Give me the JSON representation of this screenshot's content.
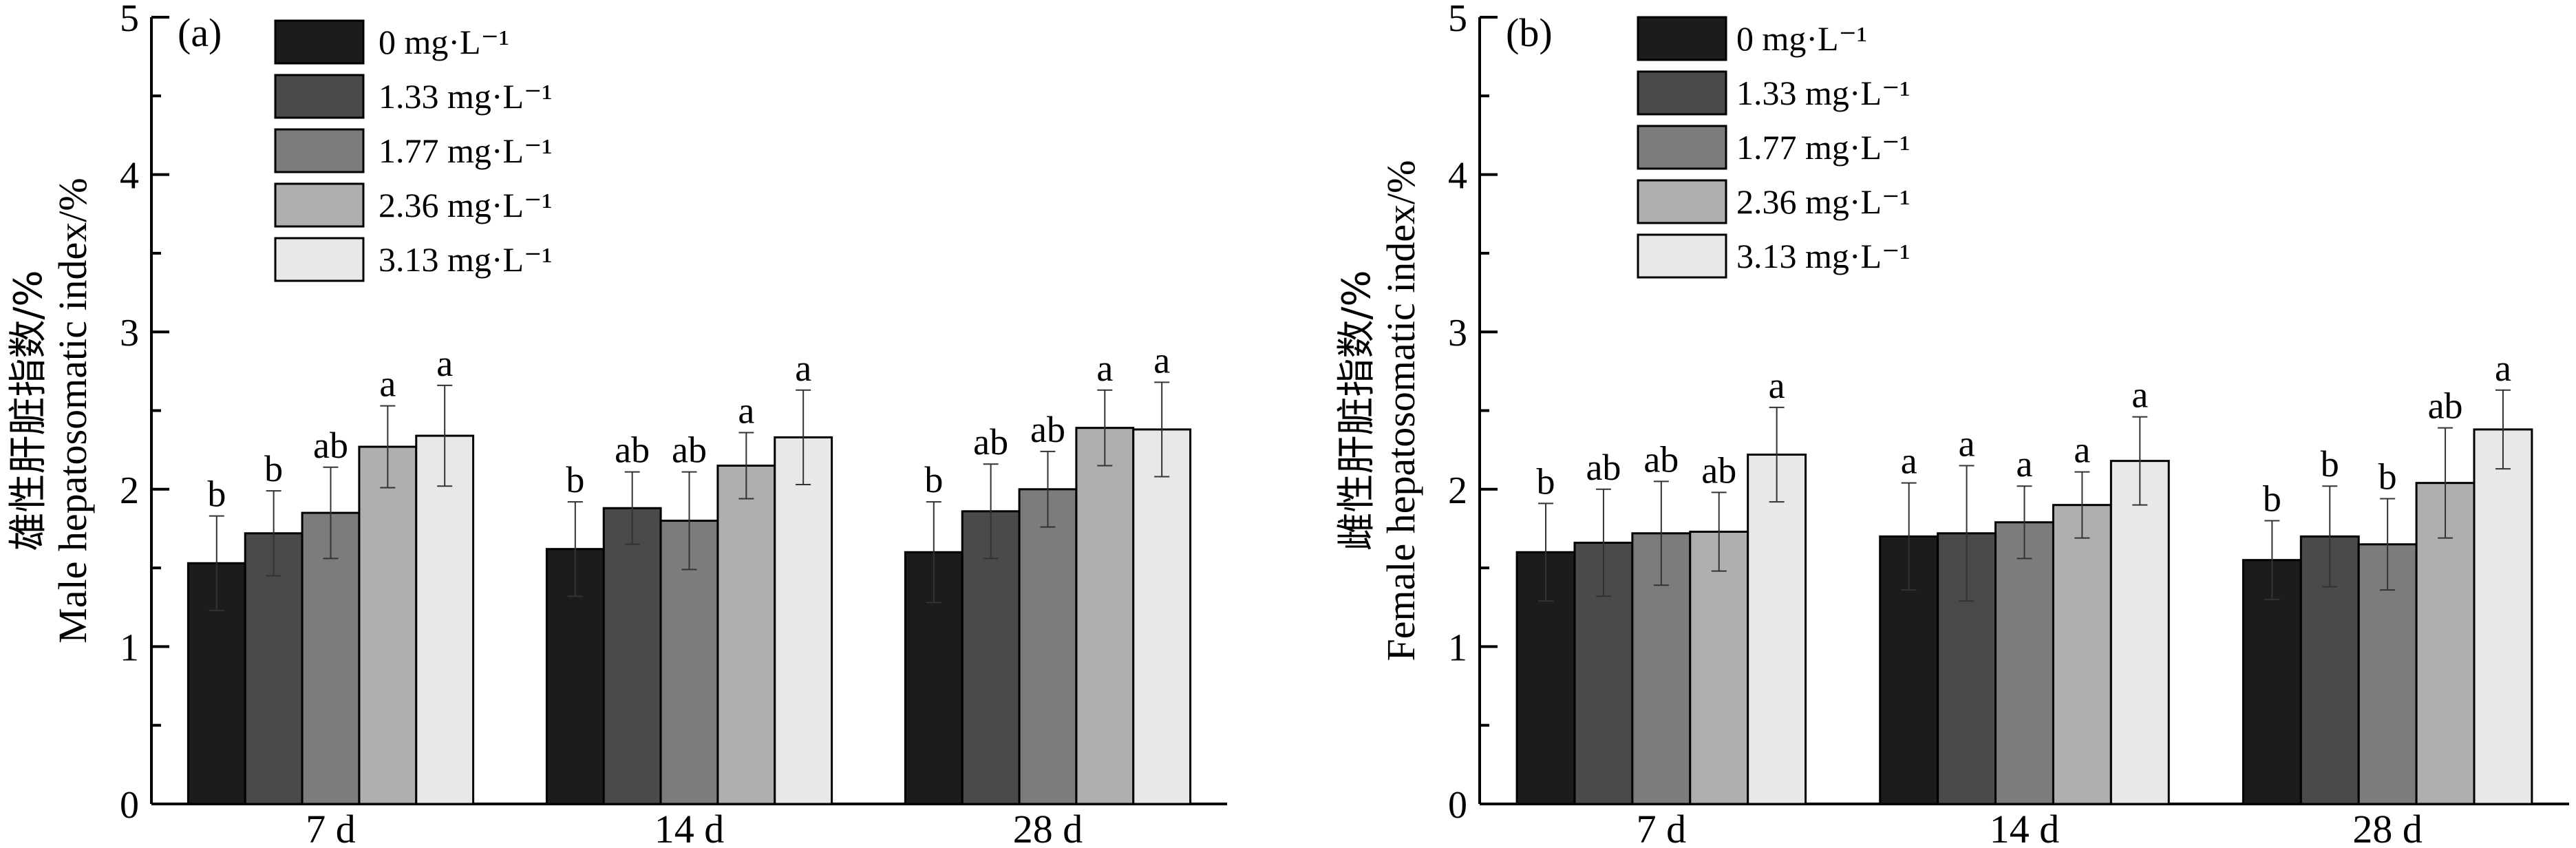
{
  "chart_data": [
    {
      "type": "bar",
      "panel": "(a)",
      "ylabel_cn": "雄性肝脏指数/%",
      "ylabel_en": "Male hepatosomatic index/%",
      "ylim": [
        0,
        5
      ],
      "yticks": [
        "0",
        "1",
        "2",
        "3",
        "4",
        "5"
      ],
      "categories": [
        "7 d",
        "14 d",
        "28 d"
      ],
      "legend_position": "top-left",
      "series": [
        {
          "name": "0 mg·L⁻¹",
          "color": "#1c1c1c",
          "values": [
            1.53,
            1.62,
            1.6
          ],
          "errors": [
            0.3,
            0.3,
            0.32
          ],
          "letters": [
            "b",
            "b",
            "b"
          ]
        },
        {
          "name": "1.33 mg·L⁻¹",
          "color": "#4a4a4a",
          "values": [
            1.72,
            1.88,
            1.86
          ],
          "errors": [
            0.27,
            0.23,
            0.3
          ],
          "letters": [
            "b",
            "ab",
            "ab"
          ]
        },
        {
          "name": "1.77 mg·L⁻¹",
          "color": "#7c7c7c",
          "values": [
            1.85,
            1.8,
            2.0
          ],
          "errors": [
            0.29,
            0.31,
            0.24
          ],
          "letters": [
            "ab",
            "ab",
            "ab"
          ]
        },
        {
          "name": "2.36 mg·L⁻¹",
          "color": "#afafaf",
          "values": [
            2.27,
            2.15,
            2.39
          ],
          "errors": [
            0.26,
            0.21,
            0.24
          ],
          "letters": [
            "a",
            "a",
            "a"
          ]
        },
        {
          "name": "3.13 mg·L⁻¹",
          "color": "#e8e8e8",
          "values": [
            2.34,
            2.33,
            2.38
          ],
          "errors": [
            0.32,
            0.3,
            0.3
          ],
          "letters": [
            "a",
            "a",
            "a"
          ]
        }
      ]
    },
    {
      "type": "bar",
      "panel": "(b)",
      "ylabel_cn": "雌性肝脏指数/%",
      "ylabel_en": "Female hepatosomatic index/%",
      "ylim": [
        0,
        5
      ],
      "yticks": [
        "0",
        "1",
        "2",
        "3",
        "4",
        "5"
      ],
      "categories": [
        "7 d",
        "14 d",
        "28 d"
      ],
      "legend_position": "top-left",
      "series": [
        {
          "name": "0 mg·L⁻¹",
          "color": "#1c1c1c",
          "values": [
            1.6,
            1.7,
            1.55
          ],
          "errors": [
            0.31,
            0.34,
            0.25
          ],
          "letters": [
            "b",
            "a",
            "b"
          ]
        },
        {
          "name": "1.33 mg·L⁻¹",
          "color": "#4a4a4a",
          "values": [
            1.66,
            1.72,
            1.7
          ],
          "errors": [
            0.34,
            0.43,
            0.32
          ],
          "letters": [
            "ab",
            "a",
            "b"
          ]
        },
        {
          "name": "1.77 mg·L⁻¹",
          "color": "#7c7c7c",
          "values": [
            1.72,
            1.79,
            1.65
          ],
          "errors": [
            0.33,
            0.23,
            0.29
          ],
          "letters": [
            "ab",
            "a",
            "b"
          ]
        },
        {
          "name": "2.36 mg·L⁻¹",
          "color": "#afafaf",
          "values": [
            1.73,
            1.9,
            2.04
          ],
          "errors": [
            0.25,
            0.21,
            0.35
          ],
          "letters": [
            "ab",
            "a",
            "ab"
          ]
        },
        {
          "name": "3.13 mg·L⁻¹",
          "color": "#e8e8e8",
          "values": [
            2.22,
            2.18,
            2.38
          ],
          "errors": [
            0.3,
            0.28,
            0.25
          ],
          "letters": [
            "a",
            "a",
            "a"
          ]
        }
      ]
    }
  ]
}
